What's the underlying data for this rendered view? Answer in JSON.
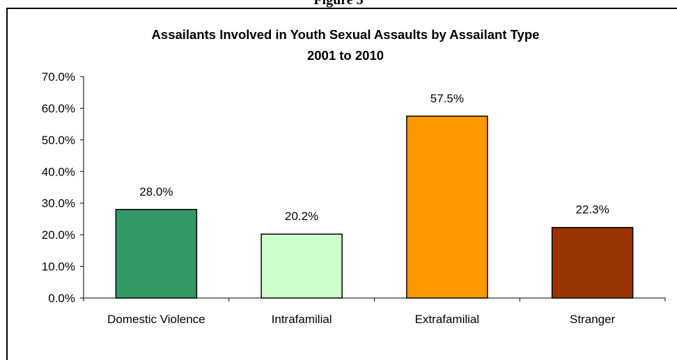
{
  "page": {
    "cut_heading": "Figure 3"
  },
  "chart_data": {
    "type": "bar",
    "title_lines": [
      "Assailants Involved in Youth Sexual Assaults by Assailant Type",
      "2001 to 2010"
    ],
    "xlabel": "",
    "ylabel": "",
    "categories": [
      "Domestic Violence",
      "Intrafamilial",
      "Extrafamilial",
      "Stranger"
    ],
    "values": [
      28.0,
      20.2,
      57.5,
      22.3
    ],
    "data_labels": [
      "28.0%",
      "20.2%",
      "57.5%",
      "22.3%"
    ],
    "colors": [
      "#339966",
      "#CCFFCC",
      "#FF9900",
      "#993300"
    ],
    "ylim": [
      0,
      70
    ],
    "yticks": [
      0,
      10,
      20,
      30,
      40,
      50,
      60,
      70
    ],
    "ytick_labels": [
      "0.0%",
      "10.0%",
      "20.0%",
      "30.0%",
      "40.0%",
      "50.0%",
      "60.0%",
      "70.0%"
    ],
    "grid": false,
    "legend": "none"
  }
}
